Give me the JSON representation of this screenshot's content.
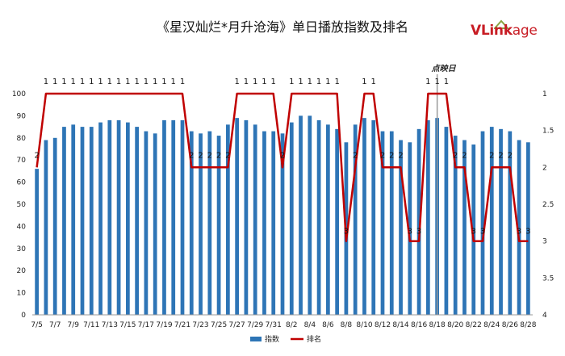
{
  "chart_data": {
    "type": "bar",
    "title": "《星汉灿烂*月升沧海》单日播放指数及排名",
    "dates": [
      "7/5",
      "7/6",
      "7/7",
      "7/8",
      "7/9",
      "7/10",
      "7/11",
      "7/12",
      "7/13",
      "7/14",
      "7/15",
      "7/16",
      "7/17",
      "7/18",
      "7/19",
      "7/20",
      "7/21",
      "7/22",
      "7/23",
      "7/24",
      "7/25",
      "7/26",
      "7/27",
      "7/28",
      "7/29",
      "7/30",
      "7/31",
      "8/1",
      "8/2",
      "8/3",
      "8/4",
      "8/5",
      "8/6",
      "8/7",
      "8/8",
      "8/9",
      "8/10",
      "8/11",
      "8/12",
      "8/13",
      "8/14",
      "8/15",
      "8/16",
      "8/17",
      "8/18",
      "8/19",
      "8/20",
      "8/21",
      "8/22",
      "8/23",
      "8/24",
      "8/25",
      "8/26",
      "8/27",
      "8/28"
    ],
    "x_tick_labels": [
      "7/5",
      "7/7",
      "7/9",
      "7/11",
      "7/13",
      "7/15",
      "7/17",
      "7/19",
      "7/21",
      "7/23",
      "7/25",
      "7/27",
      "7/29",
      "7/31",
      "8/2",
      "8/4",
      "8/6",
      "8/8",
      "8/10",
      "8/12",
      "8/14",
      "8/16",
      "8/18",
      "8/20",
      "8/22",
      "8/24",
      "8/26",
      "8/28"
    ],
    "series": [
      {
        "name": "指数",
        "type": "bar",
        "axis": "left",
        "color": "#2e75b6",
        "values": [
          66,
          79,
          80,
          85,
          86,
          85,
          85,
          87,
          88,
          88,
          87,
          85,
          83,
          82,
          88,
          88,
          88,
          83,
          82,
          83,
          81,
          86,
          89,
          88,
          86,
          83,
          83,
          82,
          87,
          90,
          90,
          88,
          86,
          84,
          78,
          86,
          89,
          88,
          83,
          83,
          79,
          78,
          84,
          88,
          89,
          85,
          81,
          79,
          77,
          83,
          85,
          84,
          83,
          79,
          78
        ]
      },
      {
        "name": "排名",
        "type": "line",
        "axis": "right",
        "color": "#c00000",
        "values": [
          2,
          1,
          1,
          1,
          1,
          1,
          1,
          1,
          1,
          1,
          1,
          1,
          1,
          1,
          1,
          1,
          1,
          2,
          2,
          2,
          2,
          2,
          1,
          1,
          1,
          1,
          1,
          2,
          1,
          1,
          1,
          1,
          1,
          1,
          3,
          2,
          1,
          1,
          2,
          2,
          2,
          3,
          3,
          1,
          1,
          1,
          2,
          2,
          3,
          3,
          2,
          2,
          2,
          3,
          3
        ],
        "data_labels": [
          2,
          1,
          1,
          1,
          1,
          1,
          1,
          1,
          1,
          1,
          1,
          1,
          1,
          1,
          1,
          1,
          1,
          2,
          2,
          2,
          2,
          2,
          1,
          1,
          1,
          1,
          1,
          2,
          1,
          1,
          1,
          1,
          1,
          1,
          3,
          2,
          1,
          1,
          2,
          2,
          2,
          3,
          3,
          1,
          1,
          1,
          2,
          2,
          3,
          3,
          2,
          2,
          2,
          3,
          3
        ]
      }
    ],
    "y_left": {
      "ylim": [
        0,
        100
      ],
      "ticks": [
        "0",
        "10",
        "20",
        "30",
        "40",
        "50",
        "60",
        "70",
        "80",
        "90",
        "100"
      ]
    },
    "y_right": {
      "ylim": [
        1,
        4
      ],
      "inverted": true,
      "ticks": [
        "1",
        "1.5",
        "2",
        "2.5",
        "3",
        "3.5",
        "4"
      ]
    },
    "annotation": {
      "text": "点映日",
      "date": "8/18"
    },
    "legend": {
      "position": "bottom",
      "items": [
        "指数",
        "排名"
      ]
    },
    "grid": false
  },
  "logo": {
    "text_v": "V",
    "text_link": "Link",
    "text_age": "age",
    "color": "#c81d25"
  }
}
